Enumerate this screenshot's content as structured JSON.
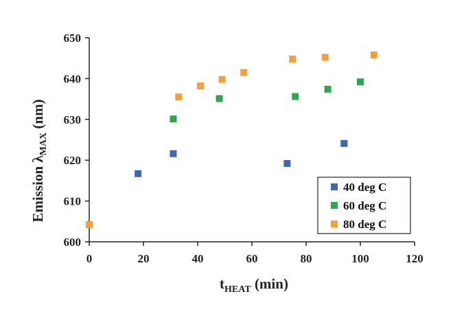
{
  "chart_data": {
    "type": "scatter",
    "title": "",
    "xlabel": {
      "main": "t",
      "sub": "HEAT",
      "rest": " (min)"
    },
    "ylabel": {
      "main": "Emission λ",
      "sub": "MAX",
      "rest": " (nm)"
    },
    "xlim": [
      0,
      120
    ],
    "ylim": [
      600,
      650
    ],
    "xticks": [
      0,
      20,
      40,
      60,
      80,
      100,
      120
    ],
    "yticks": [
      600,
      610,
      620,
      630,
      640,
      650
    ],
    "grid": false,
    "legend_position": "bottom-right",
    "series": [
      {
        "name": "40 deg C",
        "color": "#3f68b4",
        "marker": "square",
        "x": [
          0,
          18,
          31,
          73,
          94
        ],
        "y": [
          604.2,
          616.7,
          621.6,
          619.2,
          624.1
        ]
      },
      {
        "name": "60 deg C",
        "color": "#2ea84a",
        "marker": "square",
        "x": [
          0,
          31,
          48,
          76,
          88,
          100
        ],
        "y": [
          604.2,
          630.1,
          635.1,
          635.6,
          637.4,
          639.2
        ]
      },
      {
        "name": "80 deg C",
        "color": "#f5a03a",
        "marker": "square",
        "x": [
          0,
          33,
          41,
          49,
          57,
          75,
          87,
          105
        ],
        "y": [
          604.2,
          635.5,
          638.2,
          639.8,
          641.5,
          644.8,
          645.2,
          645.8
        ]
      }
    ]
  }
}
